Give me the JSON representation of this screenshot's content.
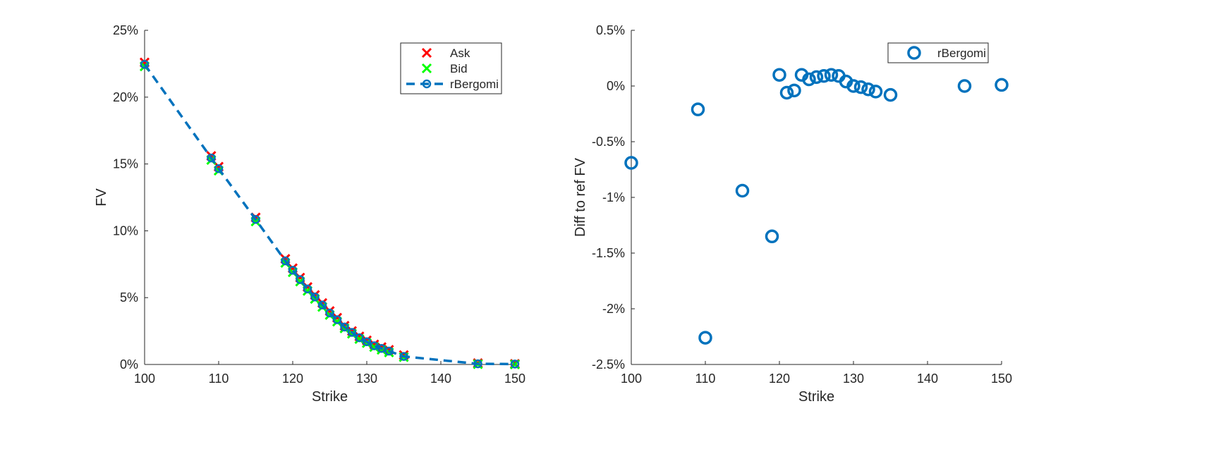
{
  "figure": {
    "background": "#ffffff"
  },
  "chart_data": [
    {
      "type": "line",
      "xlabel": "Strike",
      "ylabel": "FV",
      "xlim": [
        100,
        150
      ],
      "ylim": [
        0,
        25
      ],
      "x_ticks": [
        "100",
        "110",
        "120",
        "130",
        "140",
        "150"
      ],
      "y_ticks": [
        "0%",
        "5%",
        "10%",
        "15%",
        "20%",
        "25%"
      ],
      "legend_position": "top-right",
      "grid": false,
      "x": [
        100,
        109,
        110,
        115,
        119,
        120,
        121,
        122,
        123,
        124,
        125,
        126,
        127,
        128,
        129,
        130,
        131,
        132,
        133,
        135,
        145,
        150
      ],
      "series": [
        {
          "name": "Ask",
          "marker": "x",
          "color": "#ff0000",
          "values": [
            22.6,
            15.6,
            14.8,
            11.0,
            7.9,
            7.2,
            6.5,
            5.8,
            5.2,
            4.6,
            4.0,
            3.5,
            2.9,
            2.5,
            2.1,
            1.8,
            1.5,
            1.3,
            1.1,
            0.7,
            0.1,
            0.05
          ]
        },
        {
          "name": "Bid",
          "marker": "x",
          "color": "#00ff00",
          "values": [
            22.3,
            15.3,
            14.5,
            10.7,
            7.6,
            6.9,
            6.2,
            5.5,
            4.9,
            4.3,
            3.7,
            3.2,
            2.7,
            2.3,
            1.9,
            1.6,
            1.3,
            1.1,
            0.9,
            0.55,
            0.02,
            0.0
          ]
        },
        {
          "name": "rBergomi",
          "marker": "o",
          "line": "dashed",
          "color": "#0072bd",
          "values": [
            22.45,
            15.45,
            14.65,
            10.85,
            7.75,
            7.05,
            6.35,
            5.65,
            5.05,
            4.45,
            3.85,
            3.35,
            2.8,
            2.4,
            2.0,
            1.7,
            1.4,
            1.2,
            1.0,
            0.6,
            0.05,
            0.03
          ]
        }
      ]
    },
    {
      "type": "scatter",
      "xlabel": "Strike",
      "ylabel": "Diff to ref FV",
      "xlim": [
        100,
        150
      ],
      "ylim": [
        -2.5,
        0.5
      ],
      "x_ticks": [
        "100",
        "110",
        "120",
        "130",
        "140",
        "150"
      ],
      "y_ticks": [
        "-2.5%",
        "-2%",
        "-1.5%",
        "-1%",
        "-0.5%",
        "0%",
        "0.5%"
      ],
      "legend_position": "top-right",
      "grid": false,
      "series": [
        {
          "name": "rBergomi",
          "marker": "o",
          "color": "#0072bd",
          "x": [
            100,
            109,
            110,
            115,
            119,
            120,
            121,
            122,
            123,
            124,
            125,
            126,
            127,
            128,
            129,
            130,
            131,
            132,
            133,
            135,
            145,
            150
          ],
          "values": [
            -0.69,
            -0.21,
            -2.26,
            -0.94,
            -1.35,
            0.1,
            -0.06,
            -0.04,
            0.1,
            0.06,
            0.08,
            0.09,
            0.1,
            0.09,
            0.04,
            0.0,
            -0.01,
            -0.03,
            -0.05,
            -0.08,
            0.0,
            0.01
          ]
        }
      ]
    }
  ]
}
